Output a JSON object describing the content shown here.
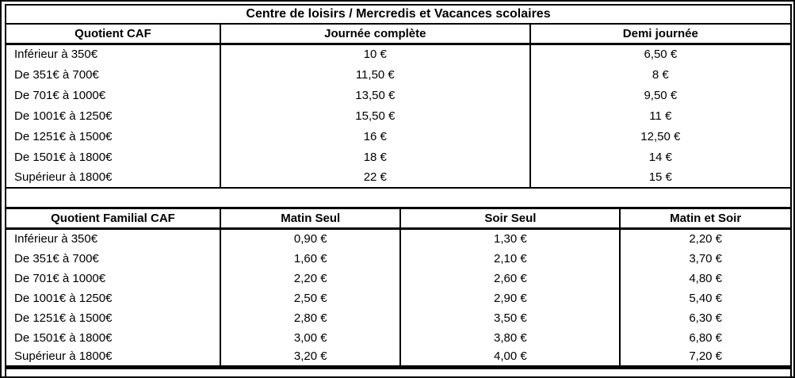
{
  "page": {
    "background_color": "#ffffff",
    "border_color": "#000000",
    "text_color": "#000000"
  },
  "table1": {
    "title": "Centre de loisirs / Mercredis et Vacances scolaires",
    "headers": [
      "Quotient CAF",
      "Journée complète",
      "Demi journée"
    ],
    "rows": [
      {
        "quotient": "Inférieur à 350€",
        "journee_complete": "10 €",
        "demi_journee": "6,50 €"
      },
      {
        "quotient": "De 351€ à 700€",
        "journee_complete": "11,50 €",
        "demi_journee": "8 €"
      },
      {
        "quotient": "De 701€ à 1000€",
        "journee_complete": "13,50 €",
        "demi_journee": "9,50 €"
      },
      {
        "quotient": "De 1001€ à 1250€",
        "journee_complete": "15,50 €",
        "demi_journee": "11 €"
      },
      {
        "quotient": "De 1251€ à 1500€",
        "journee_complete": "16 €",
        "demi_journee": "12,50 €"
      },
      {
        "quotient": "De 1501€ à 1800€",
        "journee_complete": "18 €",
        "demi_journee": "14 €"
      },
      {
        "quotient": "Supérieur à 1800€",
        "journee_complete": "22 €",
        "demi_journee": "15 €"
      }
    ]
  },
  "table2": {
    "headers": [
      "Quotient Familial CAF",
      "Matin Seul",
      "Soir Seul",
      "Matin et Soir"
    ],
    "rows": [
      {
        "quotient": "Inférieur à 350€",
        "matin_seul": "0,90 €",
        "soir_seul": "1,30 €",
        "matin_et_soir": "2,20 €"
      },
      {
        "quotient": "De 351€ à 700€",
        "matin_seul": "1,60 €",
        "soir_seul": "2,10 €",
        "matin_et_soir": "3,70 €"
      },
      {
        "quotient": "De 701€ à 1000€",
        "matin_seul": "2,20 €",
        "soir_seul": "2,60 €",
        "matin_et_soir": "4,80 €"
      },
      {
        "quotient": "De 1001€ à 1250€",
        "matin_seul": "2,50 €",
        "soir_seul": "2,90 €",
        "matin_et_soir": "5,40 €"
      },
      {
        "quotient": "De 1251€ à 1500€",
        "matin_seul": "2,80 €",
        "soir_seul": "3,50 €",
        "matin_et_soir": "6,30 €"
      },
      {
        "quotient": "De 1501€ à 1800€",
        "matin_seul": "3,00 €",
        "soir_seul": "3,80 €",
        "matin_et_soir": "6,80 €"
      },
      {
        "quotient": "Supérieur à 1800€",
        "matin_seul": "3,20 €",
        "soir_seul": "4,00 €",
        "matin_et_soir": "7,20 €"
      }
    ]
  }
}
